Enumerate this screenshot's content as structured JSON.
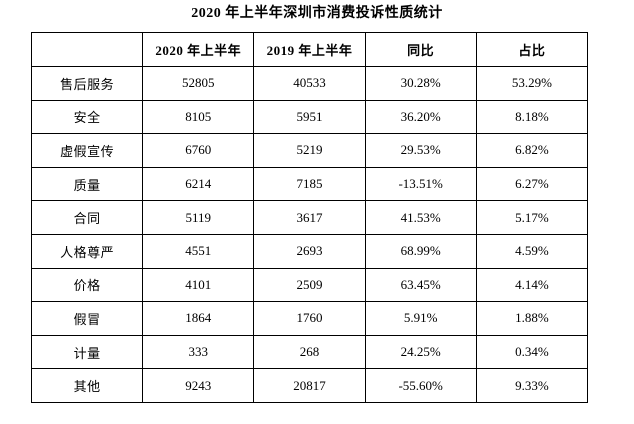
{
  "title": "2020 年上半年深圳市消费投诉性质统计",
  "table": {
    "headers": [
      "",
      "2020 年上半年",
      "2019 年上半年",
      "同比",
      "占比"
    ],
    "rows": [
      {
        "label": "售后服务",
        "h2020": "52805",
        "h2019": "40533",
        "yoy": "30.28%",
        "share": "53.29%"
      },
      {
        "label": "安全",
        "h2020": "8105",
        "h2019": "5951",
        "yoy": "36.20%",
        "share": "8.18%"
      },
      {
        "label": "虚假宣传",
        "h2020": "6760",
        "h2019": "5219",
        "yoy": "29.53%",
        "share": "6.82%"
      },
      {
        "label": "质量",
        "h2020": "6214",
        "h2019": "7185",
        "yoy": "-13.51%",
        "share": "6.27%"
      },
      {
        "label": "合同",
        "h2020": "5119",
        "h2019": "3617",
        "yoy": "41.53%",
        "share": "5.17%"
      },
      {
        "label": "人格尊严",
        "h2020": "4551",
        "h2019": "2693",
        "yoy": "68.99%",
        "share": "4.59%"
      },
      {
        "label": "价格",
        "h2020": "4101",
        "h2019": "2509",
        "yoy": "63.45%",
        "share": "4.14%"
      },
      {
        "label": "假冒",
        "h2020": "1864",
        "h2019": "1760",
        "yoy": "5.91%",
        "share": "1.88%"
      },
      {
        "label": "计量",
        "h2020": "333",
        "h2019": "268",
        "yoy": "24.25%",
        "share": "0.34%"
      },
      {
        "label": "其他",
        "h2020": "9243",
        "h2019": "20817",
        "yoy": "-55.60%",
        "share": "9.33%"
      }
    ]
  }
}
